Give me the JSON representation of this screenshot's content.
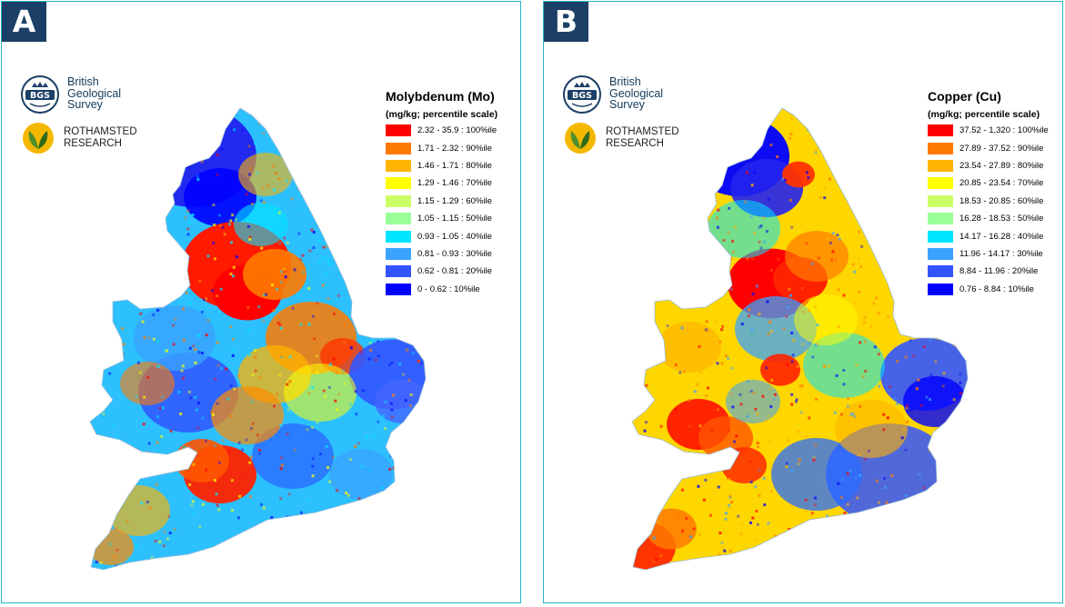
{
  "panels": [
    {
      "letter": "A",
      "bgs_text": "British Geological Survey",
      "bgs_abbrev": "BGS",
      "rothamsted_text": "ROTHAMSTED RESEARCH",
      "legend_title": "Molybdenum (Mo)",
      "legend_subtitle": "(mg/kg; percentile scale)",
      "legend": [
        {
          "label": "2.32 - 35.9 : 100%ile",
          "color": "#ff0000"
        },
        {
          "label": "1.71 - 2.32 : 90%ile",
          "color": "#ff7a00"
        },
        {
          "label": "1.46 - 1.71 : 80%ile",
          "color": "#ffb400"
        },
        {
          "label": "1.29 - 1.46 : 70%ile",
          "color": "#ffff00"
        },
        {
          "label": "1.15 - 1.29 : 60%ile",
          "color": "#ccff66"
        },
        {
          "label": "1.05 - 1.15 : 50%ile",
          "color": "#99ff99"
        },
        {
          "label": "0.93 - 1.05 : 40%ile",
          "color": "#00e5ff"
        },
        {
          "label": "0.81 - 0.93 : 30%ile",
          "color": "#3aa3ff"
        },
        {
          "label": "0.62 - 0.81 : 20%ile",
          "color": "#3355ff"
        },
        {
          "label": "0 - 0.62 : 10%ile",
          "color": "#0000ff"
        }
      ]
    },
    {
      "letter": "B",
      "bgs_text": "British Geological Survey",
      "bgs_abbrev": "BGS",
      "rothamsted_text": "ROTHAMSTED RESEARCH",
      "legend_title": "Copper (Cu)",
      "legend_subtitle": "(mg/kg; percentile scale)",
      "legend": [
        {
          "label": "37.52 - 1,320 : 100%ile",
          "color": "#ff0000"
        },
        {
          "label": "27.89 - 37.52 : 90%ile",
          "color": "#ff7a00"
        },
        {
          "label": "23.54 - 27.89 : 80%ile",
          "color": "#ffb400"
        },
        {
          "label": "20.85 - 23.54 : 70%ile",
          "color": "#ffff00"
        },
        {
          "label": "18.53 - 20.85 : 60%ile",
          "color": "#ccff66"
        },
        {
          "label": "16.28 - 18.53 : 50%ile",
          "color": "#99ff99"
        },
        {
          "label": "14.17 - 16.28 : 40%ile",
          "color": "#00e5ff"
        },
        {
          "label": "11.96 - 14.17 : 30%ile",
          "color": "#3aa3ff"
        },
        {
          "label": "8.84 - 11.96 : 20%ile",
          "color": "#3355ff"
        },
        {
          "label": "0.76 - 8.84 : 10%ile",
          "color": "#0000ff"
        }
      ]
    }
  ]
}
